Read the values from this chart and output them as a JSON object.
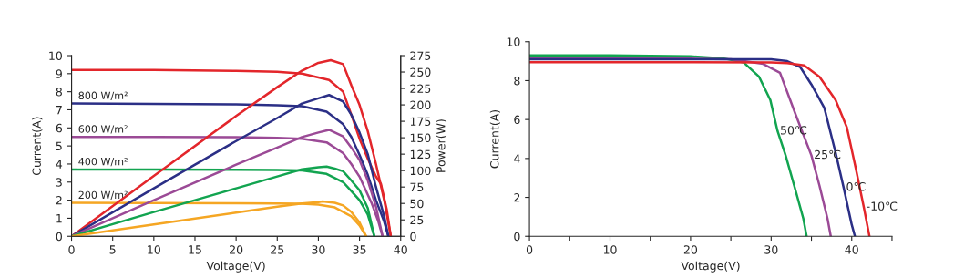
{
  "chart_data": [
    {
      "type": "line",
      "xlabel": "Voltage(V)",
      "ylabel": "Current(A)",
      "y2label": "Power(W)",
      "xlim": [
        0,
        40
      ],
      "xticks": [
        0,
        5,
        10,
        15,
        20,
        25,
        30,
        35,
        40
      ],
      "ylim": [
        0,
        10
      ],
      "yticks": [
        0,
        1,
        2,
        3,
        4,
        5,
        6,
        7,
        8,
        9,
        10
      ],
      "y2lim": [
        0,
        275
      ],
      "y2ticks": [
        0,
        25,
        50,
        75,
        100,
        125,
        150,
        175,
        200,
        225,
        250,
        275
      ],
      "grid": false,
      "legend": false,
      "series": [
        {
          "color": "#e3262b",
          "x": [
            0,
            10,
            20,
            25,
            28,
            31.3,
            33,
            34.1,
            35,
            36,
            37,
            37.6,
            38.3,
            38.8
          ],
          "values": [
            9.2,
            9.2,
            9.15,
            9.1,
            9.0,
            8.65,
            8.0,
            6.6,
            5.4,
            4.3,
            3.3,
            2.9,
            1.5,
            0
          ]
        },
        {
          "name": "800 W/m²",
          "color": "#2b2f86",
          "x": [
            0,
            10,
            20,
            25,
            28,
            31,
            33,
            34,
            35,
            36,
            37,
            38,
            38.5
          ],
          "values": [
            7.35,
            7.33,
            7.3,
            7.25,
            7.2,
            6.9,
            6.2,
            5.5,
            4.5,
            3.4,
            2.0,
            0.8,
            0
          ]
        },
        {
          "name": "600 W/m²",
          "color": "#9b4a96",
          "x": [
            0,
            10,
            20,
            25,
            28,
            31,
            33,
            34,
            35,
            36.5,
            37.3,
            37.8
          ],
          "values": [
            5.5,
            5.5,
            5.48,
            5.45,
            5.4,
            5.2,
            4.6,
            4.0,
            3.3,
            1.8,
            0.8,
            0
          ]
        },
        {
          "name": "400 W/m²",
          "color": "#12a450",
          "x": [
            0,
            10,
            20,
            25,
            28,
            31,
            33,
            34,
            35,
            36,
            36.8
          ],
          "values": [
            3.7,
            3.7,
            3.68,
            3.67,
            3.65,
            3.45,
            3.0,
            2.5,
            2.0,
            1.2,
            0
          ]
        },
        {
          "name": "200 W/m²",
          "color": "#f5a623",
          "x": [
            0,
            10,
            20,
            25,
            28,
            30,
            32,
            34,
            35,
            35.8
          ],
          "values": [
            1.85,
            1.84,
            1.83,
            1.82,
            1.8,
            1.75,
            1.6,
            1.1,
            0.6,
            0
          ]
        },
        {
          "axis": "y2",
          "color": "#e3262b",
          "x": [
            0,
            10,
            20,
            25,
            28,
            30,
            31.5,
            33,
            34,
            35,
            36,
            37,
            38,
            38.8
          ],
          "values": [
            0,
            92,
            183,
            227,
            252,
            264,
            268,
            262,
            230,
            200,
            160,
            110,
            55,
            0
          ]
        },
        {
          "axis": "y2",
          "color": "#2b2f86",
          "x": [
            0,
            10,
            20,
            25,
            28,
            30,
            31.3,
            33,
            34,
            35,
            36,
            37,
            38,
            38.5
          ],
          "values": [
            0,
            73,
            145,
            180,
            202,
            210,
            215,
            205,
            185,
            158,
            125,
            75,
            30,
            0
          ]
        },
        {
          "axis": "y2",
          "color": "#9b4a96",
          "x": [
            0,
            10,
            20,
            25,
            28,
            30,
            31.3,
            33,
            34,
            35,
            36,
            37,
            37.8
          ],
          "values": [
            0,
            55,
            109,
            135,
            151,
            158,
            162,
            152,
            135,
            116,
            85,
            45,
            0
          ]
        },
        {
          "axis": "y2",
          "color": "#12a450",
          "x": [
            0,
            10,
            20,
            25,
            28,
            30,
            31,
            32,
            33,
            34,
            35,
            36,
            36.8
          ],
          "values": [
            0,
            37,
            73,
            91,
            102,
            105,
            106,
            103,
            99,
            85,
            70,
            43,
            0
          ]
        },
        {
          "axis": "y2",
          "color": "#f5a623",
          "x": [
            0,
            10,
            20,
            25,
            28,
            30,
            30.5,
            32,
            33,
            34,
            35,
            35.8
          ],
          "values": [
            0,
            18,
            36,
            45,
            50,
            52,
            53,
            51,
            47,
            37,
            21,
            0
          ]
        }
      ]
    },
    {
      "type": "line",
      "xlabel": "Voltage(V)",
      "ylabel": "Current(A)",
      "xlim": [
        0,
        45
      ],
      "xticks": [
        0,
        {
          "value": 5,
          "label": null
        },
        10,
        {
          "value": 15,
          "label": null
        },
        20,
        {
          "value": 25,
          "label": null
        },
        30,
        {
          "value": 35,
          "label": null
        },
        40,
        {
          "value": 45,
          "label": null
        }
      ],
      "ylim": [
        0,
        10
      ],
      "yticks": [
        0,
        2,
        4,
        6,
        8,
        10
      ],
      "grid": false,
      "legend": false,
      "series": [
        {
          "name": "50℃",
          "color": "#12a450",
          "x": [
            0,
            10,
            20,
            24,
            26.6,
            28.5,
            29.9,
            30.8,
            31.8,
            33,
            34,
            34.4
          ],
          "values": [
            9.3,
            9.3,
            9.25,
            9.15,
            8.93,
            8.2,
            7.0,
            5.4,
            4.15,
            2.4,
            0.9,
            0
          ]
        },
        {
          "name": "25℃",
          "color": "#9b4a96",
          "x": [
            0,
            10,
            20,
            25,
            29,
            31.1,
            33,
            35,
            36,
            37,
            37.4
          ],
          "values": [
            9.15,
            9.15,
            9.13,
            9.1,
            8.86,
            8.4,
            6.3,
            4.15,
            2.6,
            0.9,
            0
          ]
        },
        {
          "name": "0℃",
          "color": "#2b2f86",
          "x": [
            0,
            10,
            20,
            30,
            32,
            33.6,
            35,
            36.6,
            38,
            39,
            40,
            40.4
          ],
          "values": [
            9.1,
            9.1,
            9.1,
            9.1,
            9.0,
            8.7,
            7.8,
            6.6,
            4.3,
            2.5,
            0.6,
            0
          ]
        },
        {
          "name": "-10℃",
          "color": "#e3262b",
          "x": [
            0,
            10,
            20,
            30,
            32,
            34.1,
            36,
            38,
            39.4,
            40.5,
            41.5,
            42.2
          ],
          "values": [
            8.95,
            8.95,
            8.95,
            8.93,
            8.9,
            8.78,
            8.2,
            7.0,
            5.6,
            3.5,
            1.5,
            0
          ]
        }
      ]
    }
  ]
}
